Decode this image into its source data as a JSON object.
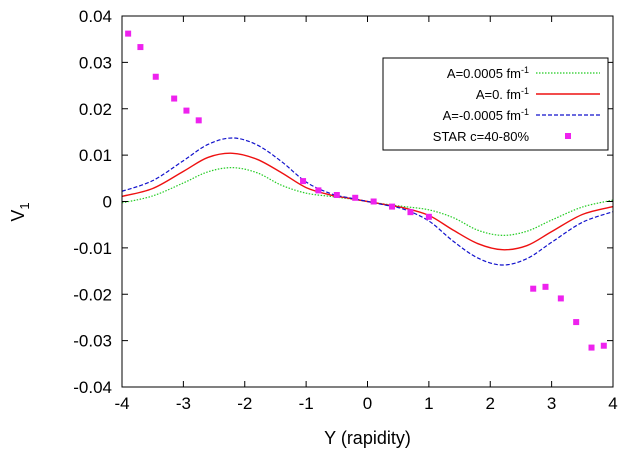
{
  "chart_data": {
    "type": "line",
    "xlabel": "Y (rapidity)",
    "ylabel": "V",
    "ylabel_sub": "1",
    "xlim": [
      -4,
      4
    ],
    "ylim": [
      -0.04,
      0.04
    ],
    "grid": false,
    "legend_position": "top-right",
    "x_ticks": [
      -4,
      -3,
      -2,
      -1,
      0,
      1,
      2,
      3,
      4
    ],
    "x_tick_labels": [
      "-4",
      "-3",
      "-2",
      "-1",
      "0",
      "1",
      "2",
      "3",
      "4"
    ],
    "y_ticks": [
      -0.04,
      -0.03,
      -0.02,
      -0.01,
      0,
      0.01,
      0.02,
      0.03,
      0.04
    ],
    "y_tick_labels": [
      "-0.04",
      "-0.03",
      "-0.02",
      "-0.01",
      "0",
      "0.01",
      "0.02",
      "0.03",
      "0.04"
    ],
    "series": [
      {
        "name": "A=0.0005 fm",
        "name_sup": "-1",
        "color": "#22cc22",
        "style": "dotted",
        "x": [
          -4,
          -3.5,
          -3,
          -2.6,
          -2.2,
          -1.8,
          -1.4,
          -1,
          -0.6,
          -0.3,
          0,
          0.3,
          0.6,
          1,
          1.4,
          1.8,
          2.2,
          2.6,
          3,
          3.5,
          4
        ],
        "y": [
          -0.0003,
          0.0012,
          0.004,
          0.0064,
          0.0073,
          0.0062,
          0.0035,
          0.0018,
          0.0011,
          0.0006,
          0,
          -0.0006,
          -0.0011,
          -0.0018,
          -0.0035,
          -0.0062,
          -0.0073,
          -0.0064,
          -0.004,
          -0.0012,
          0.0003
        ]
      },
      {
        "name": "A=0. fm",
        "name_sup": "-1",
        "color": "#ee1111",
        "style": "solid",
        "x": [
          -4,
          -3.5,
          -3,
          -2.6,
          -2.2,
          -1.8,
          -1.4,
          -1,
          -0.6,
          -0.3,
          0,
          0.3,
          0.6,
          1,
          1.4,
          1.8,
          2.2,
          2.6,
          3,
          3.5,
          4
        ],
        "y": [
          0.0011,
          0.0028,
          0.0065,
          0.0095,
          0.0104,
          0.0091,
          0.0062,
          0.003,
          0.0014,
          0.0007,
          0,
          -0.0007,
          -0.0014,
          -0.003,
          -0.0062,
          -0.0091,
          -0.0104,
          -0.0095,
          -0.0065,
          -0.0028,
          -0.0011
        ]
      },
      {
        "name": "A=-0.0005 fm",
        "name_sup": "-1",
        "color": "#1111cc",
        "style": "dashed",
        "x": [
          -4,
          -3.5,
          -3,
          -2.6,
          -2.2,
          -1.8,
          -1.4,
          -1,
          -0.6,
          -0.3,
          0,
          0.3,
          0.6,
          1,
          1.4,
          1.8,
          2.2,
          2.6,
          3,
          3.5,
          4
        ],
        "y": [
          0.0022,
          0.0045,
          0.0088,
          0.0123,
          0.0137,
          0.0122,
          0.0086,
          0.0042,
          0.0017,
          0.0008,
          0,
          -0.0008,
          -0.0017,
          -0.0042,
          -0.0086,
          -0.0122,
          -0.0137,
          -0.0123,
          -0.0088,
          -0.0045,
          -0.0022
        ]
      }
    ],
    "points": {
      "name": "STAR c=40-80%",
      "color": "#ee22ee",
      "x": [
        -3.9,
        -3.7,
        -3.45,
        -3.15,
        -2.95,
        -2.75,
        -1.05,
        -0.8,
        -0.5,
        -0.2,
        0.1,
        0.4,
        0.7,
        1.0,
        2.7,
        2.9,
        3.15,
        3.4,
        3.65,
        3.85
      ],
      "y": [
        0.0362,
        0.0333,
        0.0269,
        0.0222,
        0.0196,
        0.0175,
        0.0044,
        0.0024,
        0.0014,
        0.0008,
        0.0,
        -0.0011,
        -0.0023,
        -0.0033,
        -0.0188,
        -0.0184,
        -0.0209,
        -0.026,
        -0.0315,
        -0.0311
      ]
    }
  }
}
